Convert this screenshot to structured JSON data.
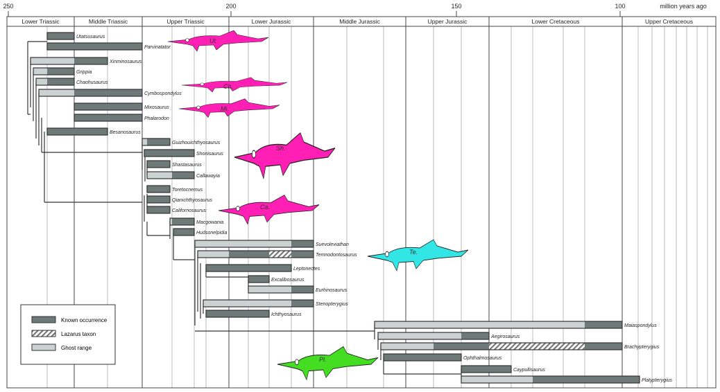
{
  "axis": {
    "unit_label": "million years ago",
    "ticks": [
      250,
      200,
      150,
      100
    ]
  },
  "periods": [
    "Lower Triassic",
    "Middle Triassic",
    "Upper Triassic",
    "Lower Jurassic",
    "Middle Jurassic",
    "Upper Jurassic",
    "Lower Cretaceous",
    "Upper Cretaceous"
  ],
  "taxa": [
    "Utatsusaurus",
    "Parvinatator",
    "Xinminosaurus",
    "Grippia",
    "Chaohusaurus",
    "Cymbospondylus",
    "Mixosaurus",
    "Phalarodon",
    "Besanosaurus",
    "Guizhouichthyosaurus",
    "Shonisaurus",
    "Shastasaurus",
    "Callawayia",
    "Toretocnemus",
    "Qianichthyosaurus",
    "Californosaurus",
    "Macgowania",
    "Hudsonelpidia",
    "Suevoleviathan",
    "Temnodontosaurus",
    "Leptonectes",
    "Excalibosaurus",
    "Eurhinosaurus",
    "Stenopterygius",
    "Ichthyosaurus",
    "Maiaspondylus",
    "Aegirosaurus",
    "Brachypterygius",
    "Ophthalmosaurus",
    "Caypullisaurus",
    "Platypterygius"
  ],
  "silhouettes": [
    {
      "abbr": "Ut.",
      "color": "#ff1fb4"
    },
    {
      "abbr": "Ch.",
      "color": "#ff1fb4"
    },
    {
      "abbr": "Mi.",
      "color": "#ff1fb4"
    },
    {
      "abbr": "Sh.",
      "color": "#ff1fb4"
    },
    {
      "abbr": "Ca.",
      "color": "#ff1fb4"
    },
    {
      "abbr": "Te.",
      "color": "#33e6e6"
    },
    {
      "abbr": "Pl.",
      "color": "#44dd22"
    }
  ],
  "legend": {
    "known": "Known occurrence",
    "lazarus": "Lazarus taxon",
    "ghost": "Ghost range"
  },
  "colors": {
    "known": "#6e7a78",
    "ghost": "#ccd2d1",
    "outline": "#333333"
  }
}
